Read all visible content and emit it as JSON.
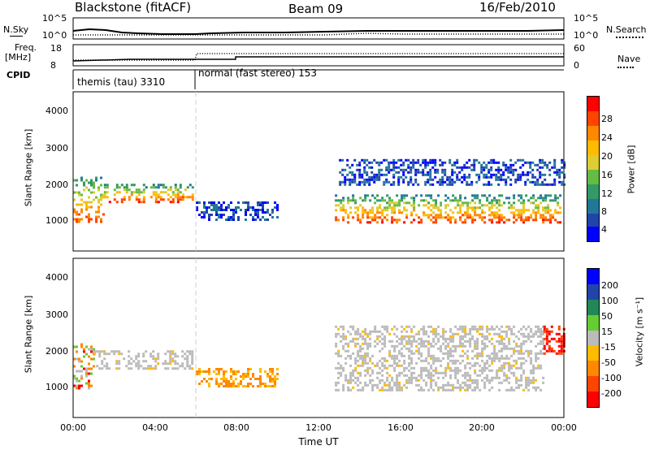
{
  "header": {
    "station": "Blackstone (fitACF)",
    "beam": "Beam 09",
    "date": "16/Feb/2010"
  },
  "strip_labels": {
    "nsky": "N.Sky",
    "nsky_ticks": [
      "10^5",
      "10^0"
    ],
    "nsearch": "N.Search",
    "nsearch_ticks": [
      "10^5",
      "10^0"
    ],
    "freq": "Freq.",
    "freq_unit": "[MHz]",
    "freq_ticks": [
      "18",
      "8"
    ],
    "nave": "Nave",
    "nave_ticks": [
      "60",
      "0"
    ],
    "cpid": "CPID"
  },
  "cpid_modes": [
    {
      "label": "themis (tau) 3310"
    },
    {
      "label": "normal (fast stereo) 153"
    }
  ],
  "power_panel": {
    "ylabel": "Slant Range [km]",
    "yticks": [
      "4000",
      "3000",
      "2000",
      "1000"
    ],
    "colorbar_label": "Power [dB]",
    "colorbar_ticks": [
      "28",
      "24",
      "20",
      "16",
      "12",
      "8",
      "4"
    ],
    "colors": [
      "#ff0000",
      "#ff4400",
      "#ff8800",
      "#ffbb00",
      "#ddcc33",
      "#66bb44",
      "#339966",
      "#227799",
      "#2244aa",
      "#0000ff"
    ]
  },
  "velocity_panel": {
    "ylabel": "Slant Range [km]",
    "yticks": [
      "4000",
      "3000",
      "2000",
      "1000"
    ],
    "colorbar_label": "Velocity [m s⁻¹]",
    "colorbar_ticks": [
      "200",
      "100",
      "50",
      "15",
      "-15",
      "-50",
      "-100",
      "-200"
    ],
    "colors": [
      "#0000ff",
      "#2244aa",
      "#228855",
      "#66cc33",
      "#bbbbbb",
      "#ffbb00",
      "#ff8800",
      "#ff4400",
      "#ff0000"
    ],
    "ground_scatter_color": "#bbbbbb"
  },
  "time_axis": {
    "label": "Time UT",
    "ticks": [
      "00:00",
      "04:00",
      "08:00",
      "12:00",
      "16:00",
      "20:00",
      "00:00"
    ]
  },
  "chart_data": [
    {
      "type": "heatmap",
      "name": "power",
      "x_range_hours": [
        0,
        24
      ],
      "y_range_km": [
        0,
        4500
      ],
      "colorbar_range_db": [
        0,
        30
      ],
      "regions": [
        {
          "t0": 0.0,
          "t1": 1.5,
          "r0": 800,
          "r1": 2100,
          "level": "high"
        },
        {
          "t0": 1.5,
          "t1": 5.8,
          "r0": 1400,
          "r1": 1900,
          "level": "high"
        },
        {
          "t0": 6.0,
          "t1": 10.0,
          "r0": 900,
          "r1": 1400,
          "level": "low"
        },
        {
          "t0": 12.8,
          "t1": 23.8,
          "r0": 800,
          "r1": 1600,
          "level": "high"
        },
        {
          "t0": 13.0,
          "t1": 24.0,
          "r0": 1900,
          "r1": 2600,
          "level": "low"
        }
      ]
    },
    {
      "type": "heatmap",
      "name": "velocity",
      "x_range_hours": [
        0,
        24
      ],
      "y_range_km": [
        0,
        4500
      ],
      "colorbar_range": [
        -200,
        200
      ],
      "regions": [
        {
          "t0": 0.0,
          "t1": 1.0,
          "r0": 800,
          "r1": 2100,
          "velocity": "mixed"
        },
        {
          "t0": 1.0,
          "t1": 5.8,
          "r0": 1400,
          "r1": 1900,
          "velocity": "ground"
        },
        {
          "t0": 6.0,
          "t1": 10.0,
          "r0": 900,
          "r1": 1400,
          "velocity": "-50"
        },
        {
          "t0": 12.8,
          "t1": 23.0,
          "r0": 800,
          "r1": 2600,
          "velocity": "ground"
        },
        {
          "t0": 23.0,
          "t1": 24.0,
          "r0": 1800,
          "r1": 2600,
          "velocity": "-200"
        }
      ]
    }
  ]
}
